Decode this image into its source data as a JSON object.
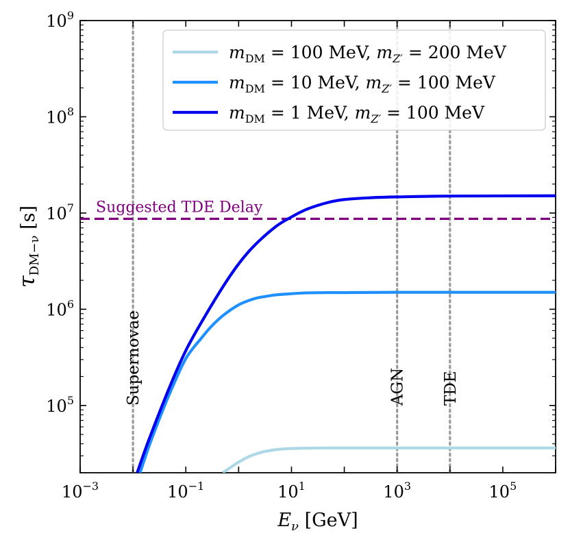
{
  "chart_data": {
    "type": "line",
    "xscale": "log",
    "yscale": "log",
    "xlim": [
      0.001,
      1000000
    ],
    "ylim": [
      20000,
      1000000000
    ],
    "xlabel": "E_ν [GeV]",
    "ylabel": "τ_DM−ν [s]",
    "x_ticks": [
      {
        "value": 0.001,
        "base": "10",
        "exp": "−3"
      },
      {
        "value": 0.1,
        "base": "10",
        "exp": "−1"
      },
      {
        "value": 10,
        "base": "10",
        "exp": "1"
      },
      {
        "value": 1000,
        "base": "10",
        "exp": "3"
      },
      {
        "value": 100000,
        "base": "10",
        "exp": "5"
      }
    ],
    "y_ticks": [
      {
        "value": 100000,
        "base": "10",
        "exp": "5"
      },
      {
        "value": 1000000,
        "base": "10",
        "exp": "6"
      },
      {
        "value": 10000000,
        "base": "10",
        "exp": "7"
      },
      {
        "value": 100000000,
        "base": "10",
        "exp": "8"
      },
      {
        "value": 1000000000,
        "base": "10",
        "exp": "9"
      }
    ],
    "series": [
      {
        "name": "m_DM = 100 MeV, m_Z′ = 200 MeV",
        "color": "#add8e6",
        "x": [
          0.5,
          0.7,
          1,
          1.5,
          2,
          3,
          5,
          7,
          10,
          20,
          50,
          100,
          1000,
          1000000
        ],
        "y": [
          20000,
          22700,
          25800,
          29100,
          31000,
          33100,
          34700,
          35300,
          35700,
          36000,
          36200,
          36200,
          36200,
          36200
        ]
      },
      {
        "name": "m_DM = 10 MeV, m_Z′ = 100 MeV",
        "color": "#1e90ff",
        "x": [
          0.0136,
          0.02,
          0.03,
          0.05,
          0.1,
          0.2,
          0.3,
          0.5,
          1,
          2,
          3,
          5,
          10,
          20,
          50,
          100,
          1000,
          1000000
        ],
        "y": [
          20000,
          37400,
          67600,
          135000,
          307000,
          506000,
          658000,
          856000,
          1110000,
          1290000,
          1350000,
          1410000,
          1450000,
          1480000,
          1490000,
          1490000,
          1500000,
          1500000
        ]
      },
      {
        "name": "m_DM = 1 MeV, m_Z′ = 100 MeV",
        "color": "#0000ee",
        "x": [
          0.012,
          0.02,
          0.05,
          0.1,
          0.2,
          0.5,
          1,
          2,
          5,
          10,
          20,
          50,
          100,
          300,
          1000,
          10000,
          1000000
        ],
        "y": [
          20000,
          44000,
          158000,
          372000,
          740000,
          1700000,
          2960000,
          4610000,
          7200000,
          9100000,
          11000000,
          12900000,
          13800000,
          14400000,
          14700000,
          15000000,
          15100000
        ]
      }
    ],
    "reference_line": {
      "label": "Suggested TDE Delay",
      "y": 8700000,
      "color": "#800080"
    },
    "vertical_lines": [
      {
        "label": "Supernovae",
        "x": 0.01
      },
      {
        "label": "AGN",
        "x": 1000
      },
      {
        "label": "TDE",
        "x": 10000
      }
    ],
    "legend_location": "top-right",
    "legend": [
      {
        "name": "m",
        "sub": "DM",
        "rest": " = 100 MeV, ",
        "name2": "m",
        "sub2": "Z′",
        "rest2": " = 200 MeV"
      },
      {
        "name": "m",
        "sub": "DM",
        "rest": " = 10 MeV, ",
        "name2": "m",
        "sub2": "Z′",
        "rest2": " = 100 MeV"
      },
      {
        "name": "m",
        "sub": "DM",
        "rest": " = 1 MeV, ",
        "name2": "m",
        "sub2": "Z′",
        "rest2": " = 100 MeV"
      }
    ],
    "axis_text": {
      "xlabel_main": "E",
      "xlabel_sub": "ν",
      "xlabel_unit": " [GeV]",
      "ylabel_main": "τ",
      "ylabel_sub": "DM−ν",
      "ylabel_unit": " [s]"
    }
  }
}
